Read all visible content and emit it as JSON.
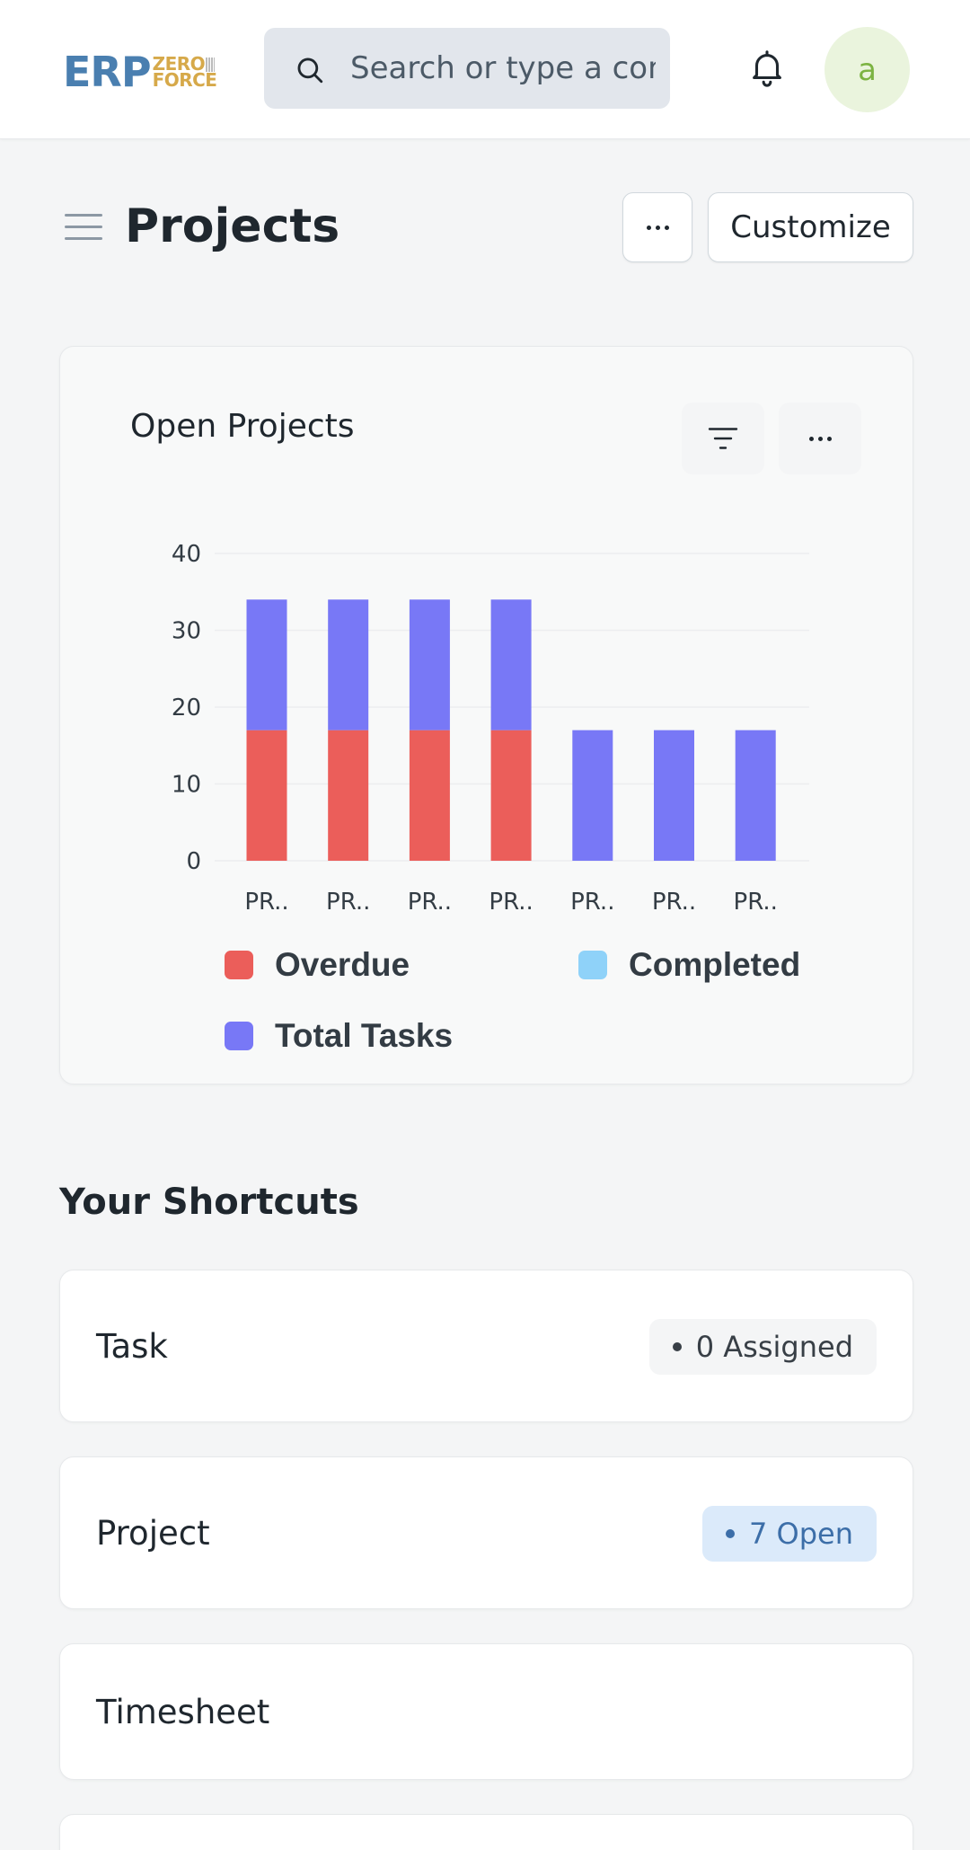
{
  "brand": {
    "primary": "ERP",
    "secondary_top": "ZERO",
    "secondary_bottom": "FORCE"
  },
  "search": {
    "placeholder": "Search or type a command"
  },
  "user": {
    "avatar_letter": "a"
  },
  "page": {
    "title": "Projects",
    "customize_label": "Customize"
  },
  "chart_card": {
    "title": "Open Projects",
    "chart_data": {
      "type": "bar",
      "stacked": true,
      "categories": [
        "PR..",
        "PR..",
        "PR..",
        "PR..",
        "PR..",
        "PR..",
        "PR.."
      ],
      "series": [
        {
          "name": "Overdue",
          "color": "#eb5e5a",
          "values": [
            17,
            17,
            17,
            17,
            0,
            0,
            0
          ]
        },
        {
          "name": "Completed",
          "color": "#8fd2f9",
          "values": [
            0,
            0,
            0,
            0,
            0,
            0,
            0
          ]
        },
        {
          "name": "Total Tasks",
          "color": "#7878f6",
          "values": [
            17,
            17,
            17,
            17,
            17,
            17,
            17
          ]
        }
      ],
      "y_ticks": [
        "0",
        "10",
        "20",
        "30",
        "40"
      ],
      "ylim": [
        0,
        40
      ],
      "grid": true,
      "legend_position": "bottom"
    }
  },
  "shortcuts": {
    "title": "Your Shortcuts",
    "items": [
      {
        "label": "Task",
        "badge": "0 Assigned",
        "badge_style": "gray"
      },
      {
        "label": "Project",
        "badge": "7 Open",
        "badge_style": "blue"
      },
      {
        "label": "Timesheet",
        "badge": ""
      }
    ]
  }
}
